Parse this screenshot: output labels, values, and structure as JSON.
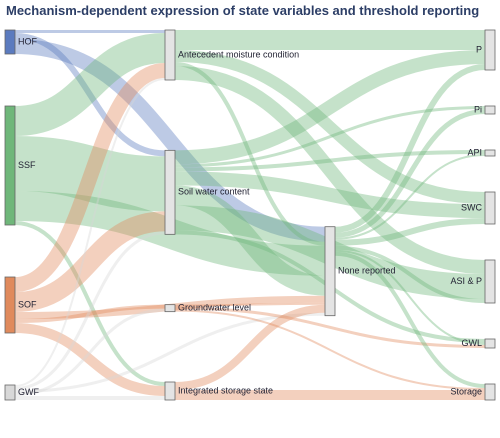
{
  "chart_data": {
    "type": "sankey",
    "title": "Mechanism-dependent expression of state variables and threshold reporting",
    "nodes": [
      {
        "name": "HOF",
        "color": "#5b7bbf"
      },
      {
        "name": "SSF",
        "color": "#6fb77a"
      },
      {
        "name": "SOF",
        "color": "#e08a5c"
      },
      {
        "name": "GWF",
        "color": "#d8d8d8"
      },
      {
        "name": "Antecedent moisture condition"
      },
      {
        "name": "Soil water content"
      },
      {
        "name": "Groundwater level"
      },
      {
        "name": "Integrated storage state"
      },
      {
        "name": "None reported"
      },
      {
        "name": "P"
      },
      {
        "name": "Pi"
      },
      {
        "name": "API"
      },
      {
        "name": "SWC"
      },
      {
        "name": "ASI & P"
      },
      {
        "name": "GWL"
      },
      {
        "name": "Storage"
      }
    ],
    "links": [
      {
        "source": 0,
        "target": 4,
        "value": 3
      },
      {
        "source": 0,
        "target": 5,
        "value": 6
      },
      {
        "source": 0,
        "target": 8,
        "value": 15
      },
      {
        "source": 1,
        "target": 4,
        "value": 30
      },
      {
        "source": 1,
        "target": 5,
        "value": 55
      },
      {
        "source": 1,
        "target": 7,
        "value": 4
      },
      {
        "source": 1,
        "target": 8,
        "value": 30
      },
      {
        "source": 2,
        "target": 4,
        "value": 15
      },
      {
        "source": 2,
        "target": 5,
        "value": 20
      },
      {
        "source": 2,
        "target": 6,
        "value": 4
      },
      {
        "source": 2,
        "target": 7,
        "value": 10
      },
      {
        "source": 2,
        "target": 8,
        "value": 7
      },
      {
        "source": 3,
        "target": 4,
        "value": 2
      },
      {
        "source": 3,
        "target": 5,
        "value": 3
      },
      {
        "source": 3,
        "target": 6,
        "value": 3
      },
      {
        "source": 3,
        "target": 7,
        "value": 4
      },
      {
        "source": 3,
        "target": 8,
        "value": 3
      },
      {
        "source": 4,
        "target": 9,
        "value": 20
      },
      {
        "source": 4,
        "target": 12,
        "value": 12
      },
      {
        "source": 4,
        "target": 13,
        "value": 14
      },
      {
        "source": 4,
        "target": 8,
        "value": 4
      },
      {
        "source": 5,
        "target": 9,
        "value": 14
      },
      {
        "source": 5,
        "target": 10,
        "value": 3
      },
      {
        "source": 5,
        "target": 11,
        "value": 4
      },
      {
        "source": 5,
        "target": 12,
        "value": 14
      },
      {
        "source": 5,
        "target": 13,
        "value": 25
      },
      {
        "source": 5,
        "target": 14,
        "value": 4
      },
      {
        "source": 5,
        "target": 8,
        "value": 20
      },
      {
        "source": 6,
        "target": 14,
        "value": 3
      },
      {
        "source": 6,
        "target": 15,
        "value": 2
      },
      {
        "source": 6,
        "target": 8,
        "value": 2
      },
      {
        "source": 7,
        "target": 15,
        "value": 10
      },
      {
        "source": 7,
        "target": 8,
        "value": 8
      },
      {
        "source": 8,
        "target": 9,
        "value": 6
      },
      {
        "source": 8,
        "target": 10,
        "value": 5
      },
      {
        "source": 8,
        "target": 11,
        "value": 2
      },
      {
        "source": 8,
        "target": 12,
        "value": 6
      },
      {
        "source": 8,
        "target": 13,
        "value": 4
      },
      {
        "source": 8,
        "target": 14,
        "value": 2
      },
      {
        "source": 8,
        "target": 15,
        "value": 4
      }
    ]
  }
}
